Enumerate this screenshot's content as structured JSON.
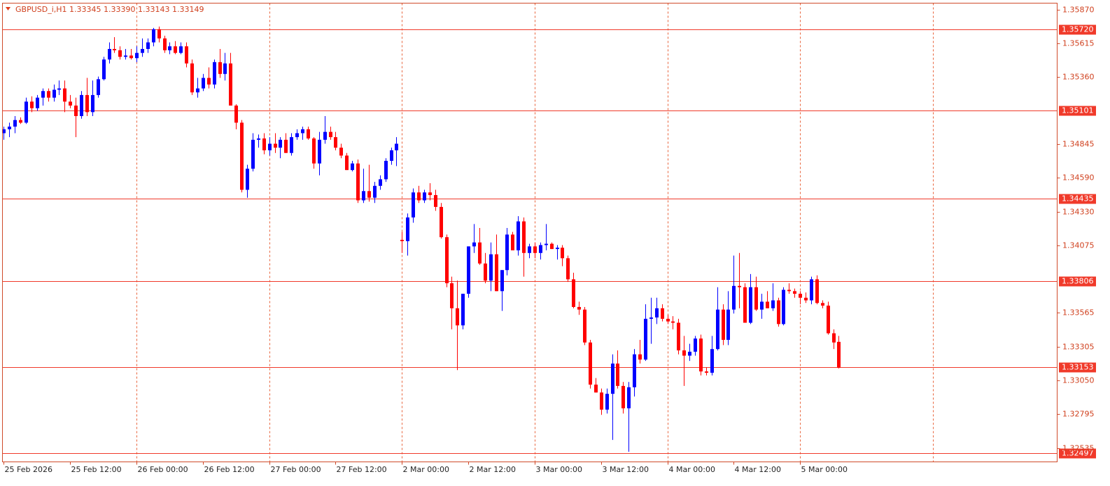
{
  "chart_data": {
    "type": "candlestick",
    "title": "GBPUSD_i,H1  1.33345 1.33390 1.33143 1.33149",
    "categories": [
      "25 Feb 2026",
      null,
      null,
      null,
      null,
      null,
      null,
      null,
      null,
      null,
      null,
      null,
      "25 Feb 12:00",
      null,
      null,
      null,
      null,
      null,
      null,
      null,
      null,
      null,
      null,
      null,
      "26 Feb 00:00",
      null,
      null,
      null,
      null,
      null,
      null,
      null,
      null,
      null,
      null,
      null,
      "26 Feb 12:00",
      null,
      null,
      null,
      null,
      null,
      null,
      null,
      null,
      null,
      null,
      null,
      "27 Feb 00:00",
      null,
      null,
      null,
      null,
      null,
      null,
      null,
      null,
      null,
      null,
      null,
      "27 Feb 12:00",
      null,
      null,
      null,
      null,
      null,
      null,
      null,
      null,
      null,
      null,
      null,
      "2 Mar 00:00",
      null,
      null,
      null,
      null,
      null,
      null,
      null,
      null,
      null,
      null,
      null,
      "2 Mar 12:00",
      null,
      null,
      null,
      null,
      null,
      null,
      null,
      null,
      null,
      null,
      null,
      "3 Mar 00:00",
      null,
      null,
      null,
      null,
      null,
      null,
      null,
      null,
      null,
      null,
      null,
      "3 Mar 12:00",
      null,
      null,
      null,
      null,
      null,
      null,
      null,
      null,
      null,
      null,
      null,
      "4 Mar 00:00",
      null,
      null,
      null,
      null,
      null,
      null,
      null,
      null,
      null,
      null,
      null,
      "4 Mar 12:00",
      null,
      null,
      null,
      null,
      null,
      null,
      null,
      null,
      null,
      null,
      null,
      "5 Mar 00:00",
      null,
      null,
      null,
      null,
      null,
      null,
      null
    ],
    "series": [
      {
        "open": [
          1.3493,
          1.3496,
          1.3498,
          1.3503,
          1.3501,
          1.3517,
          1.3512,
          1.352,
          1.3525,
          1.352,
          1.3526,
          1.3527,
          1.3517,
          1.3514,
          1.3506,
          1.3522,
          1.3509,
          1.3522,
          1.3534,
          1.3549,
          1.3557,
          1.3556,
          1.3551,
          1.3552,
          1.355,
          1.3554,
          1.3557,
          1.3562,
          1.3572,
          1.3565,
          1.3556,
          1.3559,
          1.3554,
          1.3559,
          1.3546,
          1.3524,
          1.3527,
          1.3535,
          1.353,
          1.3547,
          1.3538,
          1.3546,
          1.3514,
          1.3501,
          1.345,
          1.3466,
          1.3488,
          1.3489,
          1.348,
          1.3485,
          1.3482,
          1.3488,
          1.3478,
          1.349,
          1.3493,
          1.3496,
          1.3489,
          1.347,
          1.3488,
          1.3494,
          1.349,
          1.3482,
          1.3476,
          1.3465,
          1.347,
          1.3442,
          1.3449,
          1.3444,
          1.3453,
          1.3458,
          1.3472,
          1.348,
          1.3412,
          1.3411,
          1.3429,
          1.3448,
          1.3442,
          1.3448,
          1.3446,
          1.3437,
          1.3414,
          1.3379,
          1.336,
          1.3347,
          1.3371,
          1.3407,
          1.341,
          1.3394,
          1.3381,
          1.3401,
          1.3373,
          1.3389,
          1.3416,
          1.3404,
          1.3426,
          1.3402,
          1.3407,
          1.3402,
          1.3408,
          1.3409,
          1.3405,
          1.3406,
          1.3398,
          1.3382,
          1.3361,
          1.3359,
          1.3334,
          1.3302,
          1.3296,
          1.3283,
          1.3295,
          1.3318,
          1.3301,
          1.3284,
          1.33,
          1.3325,
          1.3321,
          1.3352,
          1.3353,
          1.336,
          1.3352,
          1.335,
          1.3349,
          1.3328,
          1.3324,
          1.3327,
          1.3337,
          1.3312,
          1.3311,
          1.3329,
          1.3359,
          1.3336,
          1.3359,
          1.3377,
          1.3376,
          1.3349,
          1.3376,
          1.3359,
          1.3365,
          1.336,
          1.3366,
          1.3348,
          1.3374,
          1.3373,
          1.3371,
          1.3368,
          1.3366,
          1.3382,
          1.3364,
          1.3362,
          1.3341,
          1.33345
        ],
        "high": [
          1.3498,
          1.3501,
          1.3506,
          1.3505,
          1.352,
          1.3521,
          1.3522,
          1.3527,
          1.3527,
          1.353,
          1.3533,
          1.3533,
          1.3522,
          1.352,
          1.3525,
          1.3535,
          1.3533,
          1.3536,
          1.3551,
          1.3562,
          1.3566,
          1.3559,
          1.3557,
          1.3557,
          1.3559,
          1.3565,
          1.3565,
          1.3573,
          1.3574,
          1.3567,
          1.3562,
          1.3563,
          1.3562,
          1.3562,
          1.3549,
          1.3535,
          1.3538,
          1.3543,
          1.3549,
          1.3557,
          1.3554,
          1.3554,
          1.3515,
          1.3503,
          1.3469,
          1.3493,
          1.3492,
          1.3493,
          1.349,
          1.3493,
          1.349,
          1.3493,
          1.3493,
          1.3496,
          1.3498,
          1.3498,
          1.349,
          1.3494,
          1.3506,
          1.3498,
          1.3494,
          1.3485,
          1.3478,
          1.3472,
          1.3473,
          1.3466,
          1.3469,
          1.3456,
          1.3461,
          1.3474,
          1.3482,
          1.349,
          1.3418,
          1.3432,
          1.3451,
          1.3453,
          1.345,
          1.3455,
          1.345,
          1.344,
          1.3416,
          1.3384,
          1.3381,
          1.3371,
          1.3407,
          1.3424,
          1.3421,
          1.3402,
          1.341,
          1.3416,
          1.3389,
          1.3421,
          1.3418,
          1.343,
          1.3429,
          1.3409,
          1.341,
          1.341,
          1.3424,
          1.341,
          1.3408,
          1.3408,
          1.34,
          1.3387,
          1.3365,
          1.3361,
          1.3336,
          1.3307,
          1.3299,
          1.3299,
          1.3325,
          1.3328,
          1.3304,
          1.3304,
          1.3329,
          1.3336,
          1.3363,
          1.3368,
          1.3368,
          1.3363,
          1.3355,
          1.3354,
          1.3352,
          1.3339,
          1.3333,
          1.3339,
          1.334,
          1.3315,
          1.3339,
          1.3376,
          1.3363,
          1.3373,
          1.34,
          1.3402,
          1.3379,
          1.3386,
          1.3384,
          1.3371,
          1.3373,
          1.3379,
          1.3368,
          1.3376,
          1.3379,
          1.3375,
          1.3373,
          1.3372,
          1.3384,
          1.3385,
          1.3366,
          1.3365,
          1.3344,
          1.3339
        ],
        "low": [
          1.3488,
          1.349,
          1.3493,
          1.35,
          1.35,
          1.3509,
          1.351,
          1.3514,
          1.3517,
          1.3517,
          1.3522,
          1.3509,
          1.3512,
          1.349,
          1.3504,
          1.3506,
          1.3506,
          1.352,
          1.3533,
          1.3546,
          1.3554,
          1.3549,
          1.3549,
          1.3549,
          1.3547,
          1.3551,
          1.3554,
          1.3559,
          1.3562,
          1.3554,
          1.3553,
          1.3553,
          1.3553,
          1.3543,
          1.3522,
          1.352,
          1.3525,
          1.3527,
          1.3527,
          1.3535,
          1.3533,
          1.3514,
          1.3496,
          1.3448,
          1.3444,
          1.3464,
          1.3482,
          1.3477,
          1.3476,
          1.3478,
          1.3474,
          1.3478,
          1.3476,
          1.3488,
          1.3488,
          1.3488,
          1.3466,
          1.3461,
          1.3485,
          1.3488,
          1.348,
          1.3474,
          1.3465,
          1.3464,
          1.344,
          1.344,
          1.3441,
          1.344,
          1.345,
          1.3456,
          1.3469,
          1.3468,
          1.3402,
          1.34,
          1.3425,
          1.344,
          1.344,
          1.3442,
          1.3434,
          1.3413,
          1.3376,
          1.3344,
          1.3313,
          1.3344,
          1.3368,
          1.3402,
          1.3393,
          1.3379,
          1.3373,
          1.3373,
          1.3358,
          1.3385,
          1.3404,
          1.34,
          1.3384,
          1.3398,
          1.3398,
          1.3397,
          1.3404,
          1.3405,
          1.3397,
          1.3392,
          1.338,
          1.336,
          1.3355,
          1.3332,
          1.3299,
          1.3296,
          1.3279,
          1.328,
          1.326,
          1.3299,
          1.328,
          1.3251,
          1.3293,
          1.3318,
          1.332,
          1.3333,
          1.3348,
          1.335,
          1.3348,
          1.3344,
          1.3325,
          1.3301,
          1.332,
          1.3324,
          1.3309,
          1.3309,
          1.3309,
          1.3328,
          1.3332,
          1.3332,
          1.3356,
          1.336,
          1.3349,
          1.3348,
          1.3358,
          1.3352,
          1.336,
          1.3358,
          1.3346,
          1.3347,
          1.3371,
          1.3368,
          1.3363,
          1.3364,
          1.3363,
          1.3363,
          1.336,
          1.334,
          1.3329,
          1.33143
        ],
        "close": [
          1.3496,
          1.3498,
          1.3503,
          1.3501,
          1.3517,
          1.3512,
          1.352,
          1.3525,
          1.352,
          1.3526,
          1.3527,
          1.3517,
          1.3514,
          1.3506,
          1.3522,
          1.3509,
          1.3522,
          1.3534,
          1.3549,
          1.3557,
          1.3556,
          1.3551,
          1.3552,
          1.355,
          1.3554,
          1.3557,
          1.3562,
          1.3572,
          1.3565,
          1.3556,
          1.3559,
          1.3554,
          1.3559,
          1.3546,
          1.3524,
          1.3527,
          1.3535,
          1.353,
          1.3547,
          1.3538,
          1.3546,
          1.3514,
          1.3501,
          1.345,
          1.3466,
          1.3488,
          1.3489,
          1.348,
          1.3485,
          1.3482,
          1.3488,
          1.3478,
          1.349,
          1.3493,
          1.3496,
          1.3489,
          1.347,
          1.3488,
          1.3494,
          1.349,
          1.3482,
          1.3476,
          1.3465,
          1.347,
          1.3442,
          1.3449,
          1.3444,
          1.3453,
          1.3458,
          1.3472,
          1.348,
          1.3485,
          1.3411,
          1.3429,
          1.3448,
          1.3442,
          1.3448,
          1.3446,
          1.3437,
          1.3414,
          1.3379,
          1.336,
          1.3347,
          1.3371,
          1.3407,
          1.341,
          1.3394,
          1.3381,
          1.3401,
          1.3373,
          1.3389,
          1.3416,
          1.3404,
          1.3426,
          1.3402,
          1.3407,
          1.3402,
          1.3408,
          1.3409,
          1.3405,
          1.3406,
          1.3398,
          1.3382,
          1.3361,
          1.3359,
          1.3334,
          1.3302,
          1.3296,
          1.3283,
          1.3295,
          1.3318,
          1.3301,
          1.3284,
          1.33,
          1.3325,
          1.3321,
          1.3352,
          1.3353,
          1.336,
          1.3352,
          1.335,
          1.3349,
          1.3328,
          1.3324,
          1.3327,
          1.3337,
          1.3312,
          1.3311,
          1.3329,
          1.3359,
          1.3336,
          1.3359,
          1.3377,
          1.3376,
          1.3349,
          1.3376,
          1.3359,
          1.3365,
          1.336,
          1.3366,
          1.3348,
          1.3374,
          1.3373,
          1.3371,
          1.3368,
          1.3366,
          1.3382,
          1.3364,
          1.3362,
          1.3341,
          1.3334,
          1.33149
        ]
      }
    ],
    "up_color": "#0000ff",
    "down_color": "#ff0000",
    "xlim": [
      -0.25,
      190.5
    ],
    "ylim": [
      1.32433,
      1.35918
    ],
    "yticks": [
      {
        "value": 1.3587,
        "label": "1.35870"
      },
      1.35615,
      {
        "value": 1.3536,
        "label": "1.35360"
      },
      1.34845,
      {
        "value": 1.3459,
        "label": "1.34590"
      },
      {
        "value": 1.3433,
        "label": "1.34330"
      },
      1.34075,
      1.33565,
      1.33305,
      {
        "value": 1.3305,
        "label": "1.33050"
      },
      1.32795,
      1.32535
    ],
    "levels": [
      {
        "value": 1.3572,
        "label": "1.35720"
      },
      1.35101,
      1.34435,
      1.33806,
      1.33153,
      1.32497
    ],
    "grid": true
  }
}
